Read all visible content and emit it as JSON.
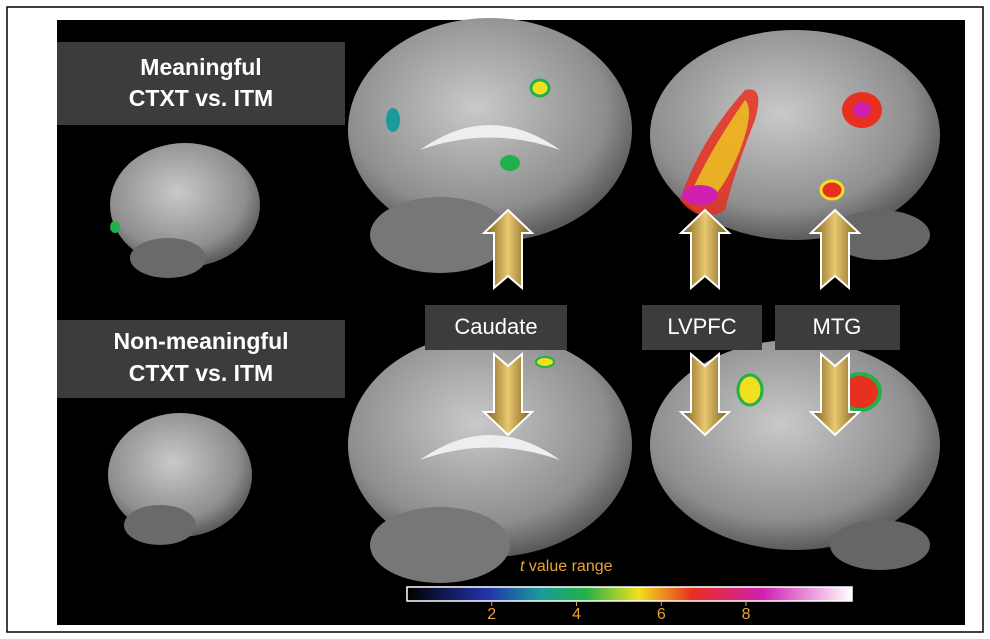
{
  "panels": {
    "top_label": [
      "Meaningful",
      "CTXT vs. ITM"
    ],
    "bottom_label": [
      "Non-meaningful",
      "CTXT vs. ITM"
    ],
    "regions": [
      "Caudate",
      "LVPFC",
      "MTG"
    ]
  },
  "colorbar": {
    "variable": "t",
    "title": "value range",
    "range": [
      0,
      10.5
    ],
    "ticks": [
      2,
      4,
      6,
      8
    ]
  }
}
